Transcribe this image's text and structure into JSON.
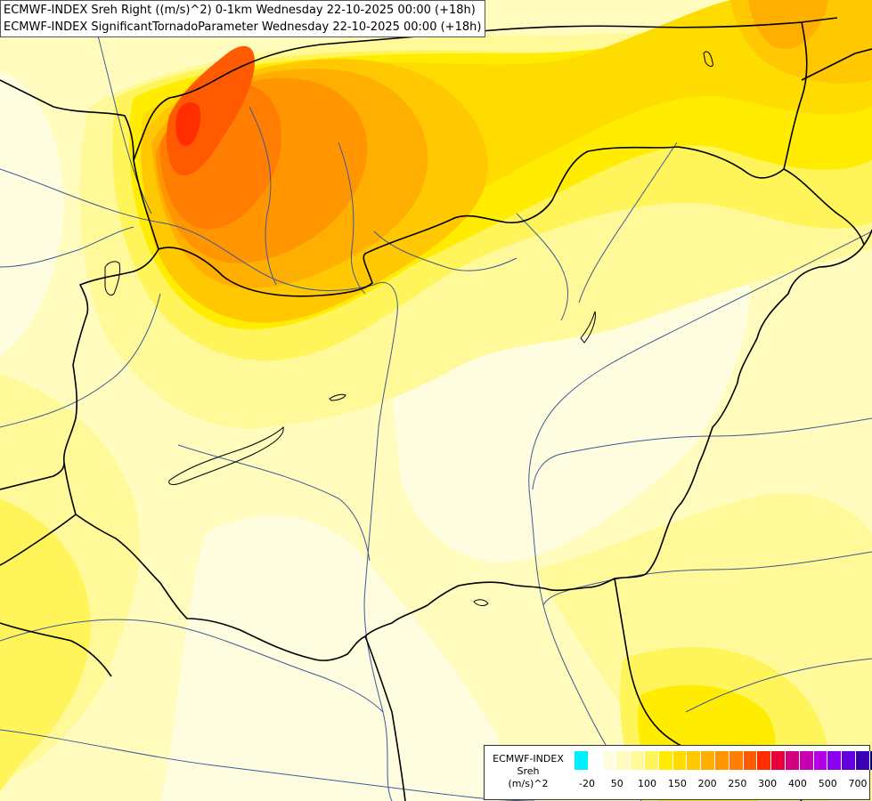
{
  "title": {
    "line1": "ECMWF-INDEX Sreh Right ((m/s)^2) 0-1km Wednesday 22-10-2025 00:00 (+18h)",
    "line2": "ECMWF-INDEX SignificantTornadoParameter Wednesday 22-10-2025 00:00 (+18h)"
  },
  "legend": {
    "source": "ECMWF-INDEX",
    "variable": "Sreh",
    "unit": "(m/s)^2",
    "colors": [
      "#00f0ff",
      "#ffffff",
      "#fffde0",
      "#fffcbe",
      "#fff99a",
      "#fff55a",
      "#ffec00",
      "#ffdc00",
      "#ffc800",
      "#ffaf00",
      "#ff9600",
      "#ff7d00",
      "#ff5a00",
      "#ff2d00",
      "#e6003c",
      "#d2007d",
      "#c800b4",
      "#b400e6",
      "#8c00f0",
      "#6400dc",
      "#3c00b4",
      "#000080"
    ],
    "tick_labels": [
      "-20",
      "50",
      "100",
      "150",
      "200",
      "250",
      "300",
      "400",
      "500",
      "700"
    ]
  },
  "map": {
    "fill_colors": {
      "base": "#fffcbe",
      "pale": "#fffde0",
      "yellow": "#fff99a",
      "bright": "#fff55a",
      "gold": "#ffec00",
      "amber": "#ffdc00",
      "orange_light": "#ffc800",
      "orange": "#ffaf00",
      "orange_deep": "#ff9600",
      "red_orange": "#ff7d00",
      "red": "#ff5a00",
      "hot": "#ff2d00"
    },
    "border_color": "#000000",
    "river_color": "#3c5a96"
  }
}
